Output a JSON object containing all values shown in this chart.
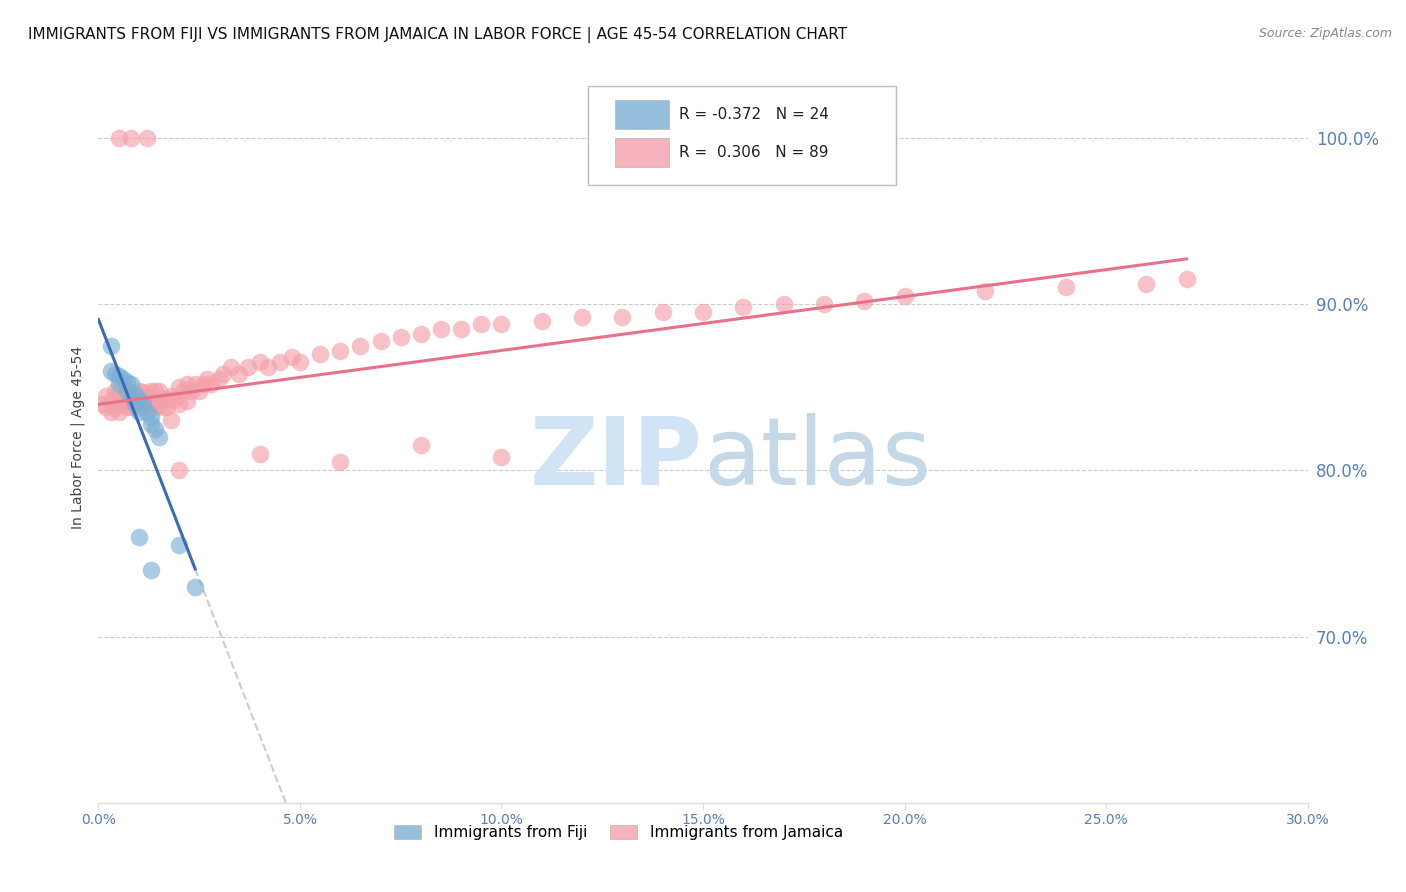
{
  "title": "IMMIGRANTS FROM FIJI VS IMMIGRANTS FROM JAMAICA IN LABOR FORCE | AGE 45-54 CORRELATION CHART",
  "source": "Source: ZipAtlas.com",
  "ylabel": "In Labor Force | Age 45-54",
  "ytick_labels_right": [
    "100.0%",
    "90.0%",
    "80.0%",
    "70.0%"
  ],
  "ytick_values_right": [
    1.0,
    0.9,
    0.8,
    0.7
  ],
  "xtick_labels": [
    "0.0%",
    "5.0%",
    "10.0%",
    "15.0%",
    "20.0%",
    "25.0%",
    "30.0%"
  ],
  "xtick_values": [
    0.0,
    0.05,
    0.1,
    0.15,
    0.2,
    0.25,
    0.3
  ],
  "legend_fiji": "Immigrants from Fiji",
  "legend_jamaica": "Immigrants from Jamaica",
  "R_fiji": -0.372,
  "N_fiji": 24,
  "R_jamaica": 0.306,
  "N_jamaica": 89,
  "color_fiji": "#7BAFD4",
  "color_jamaica": "#F4A0AA",
  "trendline_fiji_color": "#3B6BB5",
  "trendline_jamaica_color": "#E8708A",
  "trendline_dashed_color": "#CCCCCC",
  "watermark_zip_color": "#D0E4F5",
  "watermark_atlas_color": "#C5D8E8",
  "background_color": "#FFFFFF",
  "grid_color": "#CCCCCC",
  "right_axis_color": "#5580BB",
  "title_fontsize": 11,
  "fiji_x": [
    0.003,
    0.003,
    0.004,
    0.005,
    0.005,
    0.006,
    0.007,
    0.007,
    0.008,
    0.008,
    0.009,
    0.009,
    0.01,
    0.01,
    0.011,
    0.012,
    0.013,
    0.013,
    0.014,
    0.015,
    0.02,
    0.024,
    0.01,
    0.013
  ],
  "fiji_y": [
    0.875,
    0.86,
    0.858,
    0.857,
    0.852,
    0.855,
    0.853,
    0.848,
    0.852,
    0.845,
    0.846,
    0.84,
    0.843,
    0.835,
    0.84,
    0.835,
    0.832,
    0.828,
    0.825,
    0.82,
    0.755,
    0.73,
    0.76,
    0.74
  ],
  "jamaica_x": [
    0.001,
    0.002,
    0.002,
    0.003,
    0.003,
    0.004,
    0.004,
    0.005,
    0.005,
    0.006,
    0.006,
    0.007,
    0.007,
    0.008,
    0.008,
    0.009,
    0.009,
    0.01,
    0.01,
    0.011,
    0.011,
    0.012,
    0.012,
    0.013,
    0.013,
    0.014,
    0.014,
    0.015,
    0.015,
    0.016,
    0.016,
    0.017,
    0.017,
    0.018,
    0.018,
    0.019,
    0.02,
    0.02,
    0.021,
    0.022,
    0.022,
    0.023,
    0.024,
    0.025,
    0.026,
    0.027,
    0.028,
    0.03,
    0.031,
    0.033,
    0.035,
    0.037,
    0.04,
    0.042,
    0.045,
    0.048,
    0.05,
    0.055,
    0.06,
    0.065,
    0.07,
    0.075,
    0.08,
    0.085,
    0.09,
    0.095,
    0.1,
    0.11,
    0.12,
    0.13,
    0.14,
    0.15,
    0.16,
    0.17,
    0.18,
    0.19,
    0.2,
    0.22,
    0.24,
    0.26,
    0.27,
    0.02,
    0.04,
    0.06,
    0.08,
    0.1,
    0.005,
    0.008,
    0.012
  ],
  "jamaica_y": [
    0.84,
    0.845,
    0.838,
    0.842,
    0.835,
    0.848,
    0.838,
    0.848,
    0.835,
    0.843,
    0.84,
    0.845,
    0.838,
    0.843,
    0.838,
    0.845,
    0.84,
    0.848,
    0.838,
    0.847,
    0.84,
    0.845,
    0.838,
    0.848,
    0.84,
    0.848,
    0.838,
    0.848,
    0.84,
    0.843,
    0.838,
    0.843,
    0.838,
    0.845,
    0.83,
    0.843,
    0.85,
    0.84,
    0.848,
    0.852,
    0.842,
    0.848,
    0.852,
    0.848,
    0.852,
    0.855,
    0.852,
    0.855,
    0.858,
    0.862,
    0.858,
    0.862,
    0.865,
    0.862,
    0.865,
    0.868,
    0.865,
    0.87,
    0.872,
    0.875,
    0.878,
    0.88,
    0.882,
    0.885,
    0.885,
    0.888,
    0.888,
    0.89,
    0.892,
    0.892,
    0.895,
    0.895,
    0.898,
    0.9,
    0.9,
    0.902,
    0.905,
    0.908,
    0.91,
    0.912,
    0.915,
    0.8,
    0.81,
    0.805,
    0.815,
    0.808,
    1.0,
    1.0,
    1.0
  ],
  "xlim": [
    0.0,
    0.3
  ],
  "ylim": [
    0.6,
    1.04
  ]
}
